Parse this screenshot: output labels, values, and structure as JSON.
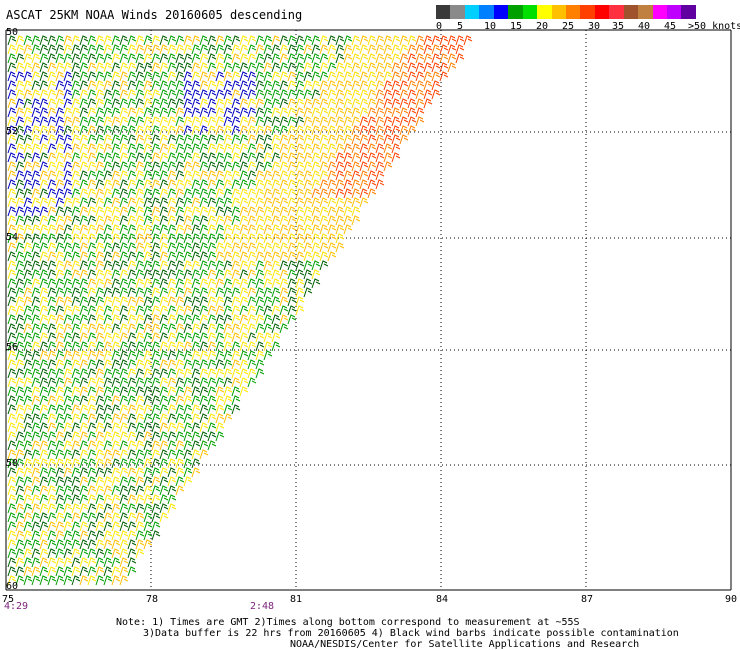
{
  "title": "ASCAT 25KM NOAA Winds 20160605 descending",
  "legend": {
    "colors": [
      "#3a3a3a",
      "#8a8a8a",
      "#00d0ff",
      "#0080ff",
      "#0000ff",
      "#00a000",
      "#00e000",
      "#ffff00",
      "#ffc000",
      "#ff8000",
      "#ff4000",
      "#ff0000",
      "#ff3040",
      "#a0522d",
      "#c08040",
      "#ff00ff",
      "#c000ff",
      "#6000a0"
    ],
    "labels": [
      "0",
      "5",
      "10",
      "15",
      "20",
      "25",
      "30",
      "35",
      "40",
      "45",
      ">50 knots"
    ]
  },
  "lat_labels": [
    "50",
    "52",
    "54",
    "56",
    "58",
    "60"
  ],
  "lon_labels": [
    "75",
    "78",
    "81",
    "84",
    "87",
    "90"
  ],
  "time_labels": [
    "4:29",
    "2:48"
  ],
  "notes": {
    "line1": "Note: 1) Times are GMT 2)Times along bottom correspond to measurement at ~55S",
    "line2": "3)Data buffer is 22 hrs from 20160605 4) Black wind barbs indicate possible contamination",
    "line3": "NOAA/NESDIS/Center for Satellite Applications and Research"
  }
}
